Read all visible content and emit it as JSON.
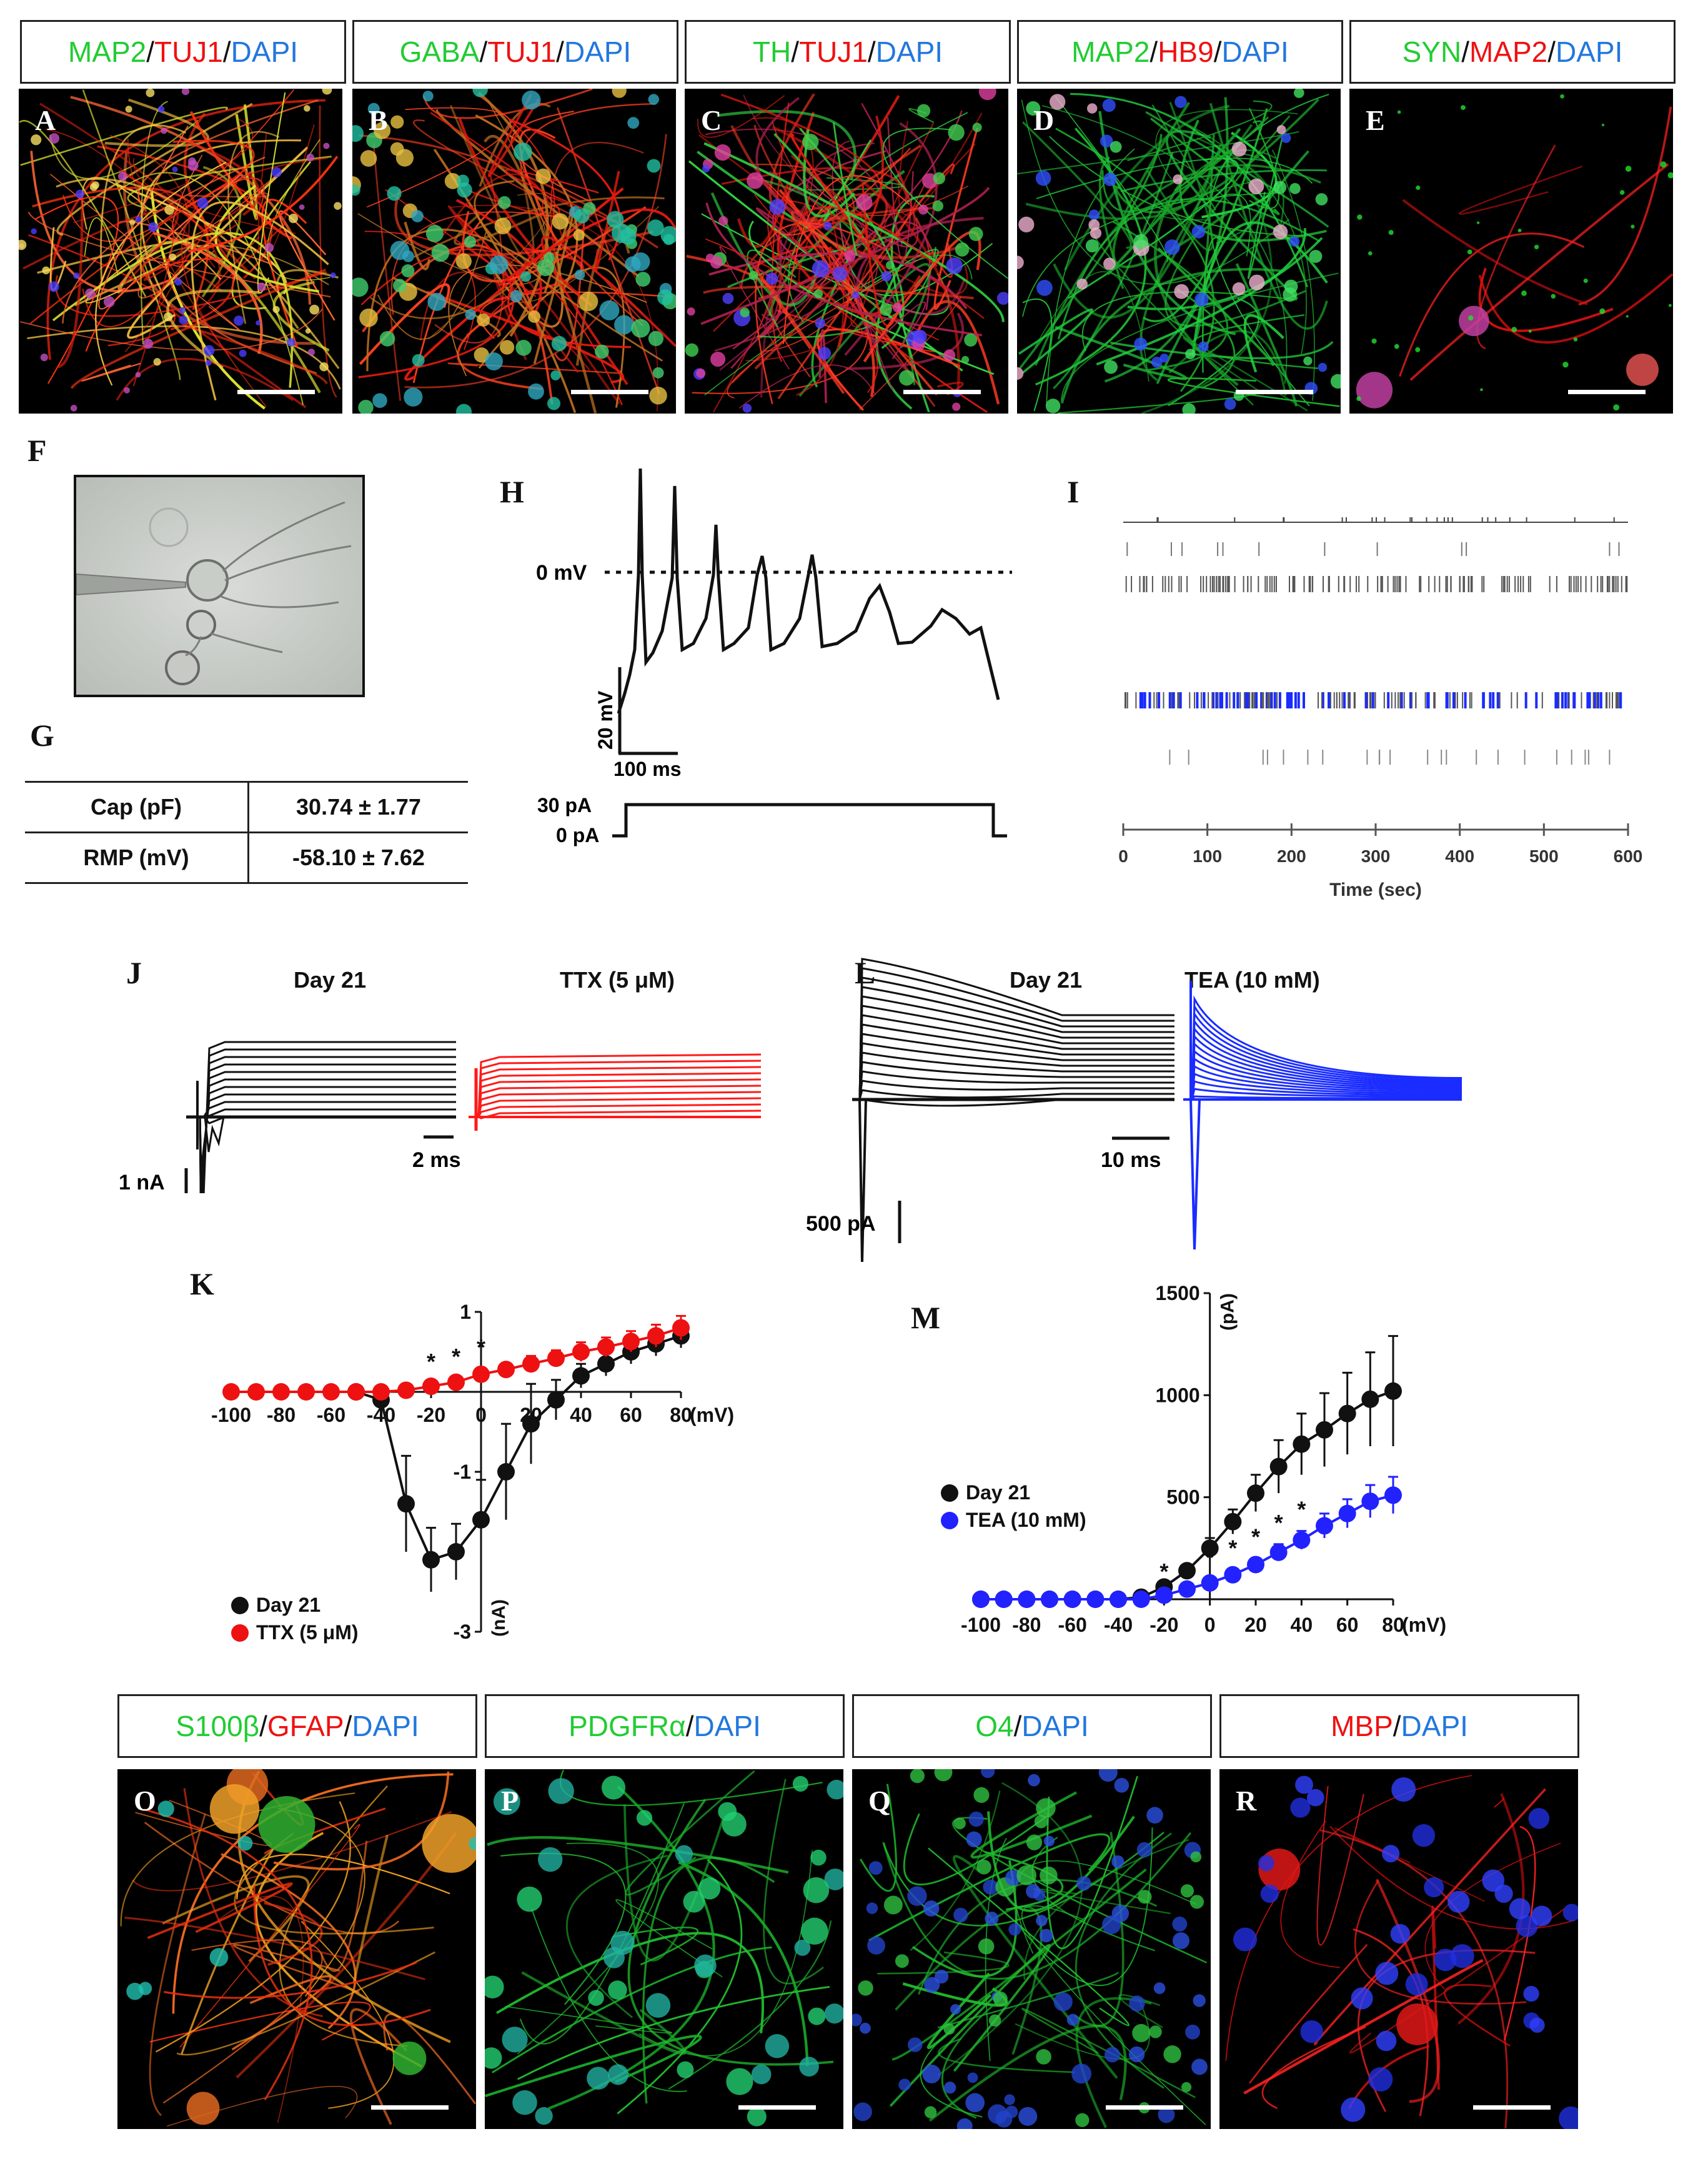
{
  "colors": {
    "green": "#22cc33",
    "red": "#ee1111",
    "blue": "#2277dd",
    "black": "#111111",
    "trace_red": "#ff1a1a",
    "trace_blue": "#1a2cff"
  },
  "top_row": {
    "panels": [
      {
        "letter": "A",
        "label": [
          {
            "t": "MAP2",
            "c": "green"
          },
          {
            "t": "/",
            "c": "black"
          },
          {
            "t": "TUJ1",
            "c": "red"
          },
          {
            "t": "/",
            "c": "black"
          },
          {
            "t": "DAPI",
            "c": "blue"
          }
        ]
      },
      {
        "letter": "B",
        "label": [
          {
            "t": "GABA",
            "c": "green"
          },
          {
            "t": "/",
            "c": "black"
          },
          {
            "t": "TUJ1",
            "c": "red"
          },
          {
            "t": "/",
            "c": "black"
          },
          {
            "t": "DAPI",
            "c": "blue"
          }
        ]
      },
      {
        "letter": "C",
        "label": [
          {
            "t": "TH",
            "c": "green"
          },
          {
            "t": "/",
            "c": "black"
          },
          {
            "t": "TUJ1",
            "c": "red"
          },
          {
            "t": "/",
            "c": "black"
          },
          {
            "t": "DAPI",
            "c": "blue"
          }
        ]
      },
      {
        "letter": "D",
        "label": [
          {
            "t": "MAP2",
            "c": "green"
          },
          {
            "t": "/",
            "c": "black"
          },
          {
            "t": "HB9",
            "c": "red"
          },
          {
            "t": "/",
            "c": "black"
          },
          {
            "t": "DAPI",
            "c": "blue"
          }
        ]
      },
      {
        "letter": "E",
        "label": [
          {
            "t": "SYN",
            "c": "green"
          },
          {
            "t": "/",
            "c": "black"
          },
          {
            "t": "MAP2",
            "c": "red"
          },
          {
            "t": "/",
            "c": "black"
          },
          {
            "t": "DAPI",
            "c": "blue"
          }
        ]
      }
    ]
  },
  "bottom_row": {
    "panels": [
      {
        "letter": "O",
        "label": [
          {
            "t": "S100β",
            "c": "green"
          },
          {
            "t": "/",
            "c": "black"
          },
          {
            "t": "GFAP",
            "c": "red"
          },
          {
            "t": "/",
            "c": "black"
          },
          {
            "t": "DAPI",
            "c": "blue"
          }
        ]
      },
      {
        "letter": "P",
        "label": [
          {
            "t": "PDGFRα",
            "c": "green"
          },
          {
            "t": "/",
            "c": "black"
          },
          {
            "t": "DAPI",
            "c": "blue"
          }
        ]
      },
      {
        "letter": "Q",
        "label": [
          {
            "t": "O4",
            "c": "green"
          },
          {
            "t": "/",
            "c": "black"
          },
          {
            "t": "DAPI",
            "c": "blue"
          }
        ]
      },
      {
        "letter": "R",
        "label": [
          {
            "t": "MBP",
            "c": "red"
          },
          {
            "t": "/",
            "c": "black"
          },
          {
            "t": "DAPI",
            "c": "blue"
          }
        ]
      }
    ]
  },
  "panel_F": {
    "letter": "F"
  },
  "panel_G": {
    "letter": "G",
    "rows": [
      {
        "label": "Cap (pF)",
        "value": "30.74 ± 1.77"
      },
      {
        "label": "RMP (mV)",
        "value": "-58.10 ± 7.62"
      }
    ]
  },
  "panel_H": {
    "letter": "H",
    "zero_label": "0 mV",
    "scale_v": "20 mV",
    "scale_t": "100 ms",
    "step_high": "30 pA",
    "step_low": "0 pA"
  },
  "panel_I": {
    "letter": "I",
    "xlabel": "Time (sec)",
    "ticks": [
      "0",
      "100",
      "200",
      "300",
      "400",
      "500",
      "600"
    ]
  },
  "panel_J": {
    "letter": "J",
    "title_left": "Day 21",
    "title_right": "TTX (5 μM)",
    "scale_i": "1 nA",
    "scale_t": "2 ms"
  },
  "panel_L": {
    "letter": "L",
    "title_left": "Day 21",
    "title_right": "TEA (10 mM)",
    "scale_t": "10 ms",
    "scale_i": "500 pA"
  },
  "chart_data": [
    {
      "panel": "K",
      "type": "line",
      "xlabel": "(mV)",
      "ylabel": "(nA)",
      "xlim": [
        -100,
        80
      ],
      "ylim": [
        -3,
        1
      ],
      "x_ticks": [
        "-100",
        "-80",
        "-60",
        "-40",
        "-20",
        "0",
        "20",
        "40",
        "60",
        "80"
      ],
      "y_ticks": [
        "1",
        "-1",
        "-3"
      ],
      "asterisks_at_x": [
        -20,
        -10,
        0
      ],
      "asterisk_label": "*",
      "series": [
        {
          "name": "Day 21",
          "color": "#111111",
          "x": [
            -50,
            -40,
            -30,
            -20,
            -10,
            0,
            10,
            20,
            30,
            40,
            50,
            60,
            70,
            80
          ],
          "y": [
            0.0,
            -0.1,
            -1.4,
            -2.1,
            -2.0,
            -1.6,
            -1.0,
            -0.4,
            -0.1,
            0.2,
            0.35,
            0.5,
            0.6,
            0.7
          ],
          "err": [
            0,
            0.1,
            0.6,
            0.4,
            0.35,
            0.5,
            0.6,
            0.5,
            0.25,
            0.15,
            0.15,
            0.15,
            0.15,
            0.15
          ]
        },
        {
          "name": "TTX (5 μM)",
          "color": "#ee1111",
          "x": [
            -100,
            -90,
            -80,
            -70,
            -60,
            -50,
            -40,
            -30,
            -20,
            -10,
            0,
            10,
            20,
            30,
            40,
            50,
            60,
            70,
            80
          ],
          "y": [
            0,
            0,
            0,
            0,
            0,
            0,
            0,
            0.02,
            0.07,
            0.12,
            0.22,
            0.28,
            0.35,
            0.42,
            0.5,
            0.56,
            0.63,
            0.7,
            0.8
          ],
          "err": [
            0,
            0,
            0,
            0,
            0,
            0,
            0,
            0.02,
            0.04,
            0.05,
            0.07,
            0.08,
            0.1,
            0.1,
            0.12,
            0.12,
            0.13,
            0.14,
            0.15
          ]
        }
      ]
    },
    {
      "panel": "M",
      "type": "line",
      "xlabel": "(mV)",
      "ylabel": "(pA)",
      "xlim": [
        -100,
        80
      ],
      "ylim": [
        0,
        1500
      ],
      "x_ticks": [
        "-100",
        "-80",
        "-60",
        "-40",
        "-20",
        "0",
        "20",
        "40",
        "60",
        "80"
      ],
      "y_ticks": [
        "1500",
        "1000",
        "500"
      ],
      "asterisks_at_x": [
        -20,
        0,
        10,
        20,
        30,
        40
      ],
      "asterisk_label": "*",
      "series": [
        {
          "name": "Day 21",
          "color": "#111111",
          "x": [
            -100,
            -90,
            -80,
            -70,
            -60,
            -50,
            -40,
            -30,
            -20,
            -10,
            0,
            10,
            20,
            30,
            40,
            50,
            60,
            70,
            80
          ],
          "y": [
            0,
            0,
            0,
            0,
            0,
            0,
            0,
            10,
            60,
            140,
            250,
            380,
            520,
            650,
            760,
            830,
            910,
            980,
            1020
          ],
          "err": [
            0,
            0,
            0,
            0,
            0,
            0,
            0,
            10,
            20,
            30,
            50,
            60,
            90,
            130,
            150,
            180,
            200,
            230,
            270
          ]
        },
        {
          "name": "TEA (10 mM)",
          "color": "#2222ff",
          "x": [
            -100,
            -90,
            -80,
            -70,
            -60,
            -50,
            -40,
            -30,
            -20,
            -10,
            0,
            10,
            20,
            30,
            40,
            50,
            60,
            70,
            80
          ],
          "y": [
            0,
            0,
            0,
            0,
            0,
            0,
            0,
            0,
            20,
            50,
            80,
            120,
            170,
            230,
            290,
            360,
            420,
            480,
            510
          ],
          "err": [
            0,
            0,
            0,
            0,
            0,
            0,
            0,
            0,
            10,
            15,
            20,
            25,
            30,
            40,
            45,
            60,
            70,
            80,
            90
          ]
        }
      ]
    }
  ]
}
